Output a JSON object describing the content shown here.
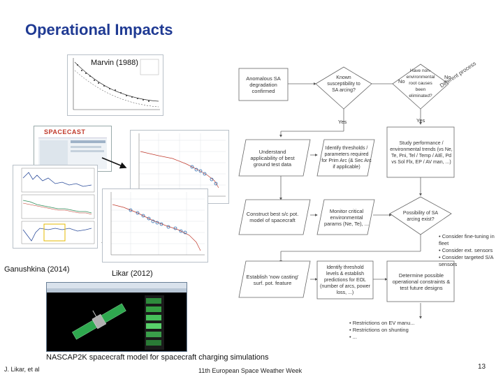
{
  "title": "Operational Impacts",
  "captions": {
    "marvin": "Marvin (1988)",
    "ganushkina": "Ganushkina (2014)",
    "likar": "Likar (2012)",
    "nascap": "NASCAP2K spacecraft model for spacecraft charging simulations"
  },
  "logo_text": "SPACECAST",
  "flowchart": {
    "anomalous": "Anomalous SA degradation confirmed",
    "known": "Known susceptibility to SA arcing?",
    "no_label": "No",
    "env_changes": "Have non-environmental root causes been eliminated?",
    "no_small": "No",
    "diff_process": "Different process",
    "yes_left": "Yes",
    "yes_right": "Yes",
    "understand": "Understand applicability of best ground test data",
    "identify": "Identify thresholds / parameters required for Prim Arc (& Sec Arc if applicable)",
    "study": "Study performance / environmental trends (vs Ne, Te, Pni, Tel / Temp / AIE, Pd vs Sol Flx, EP / AV man, ...)",
    "construct": "Construct best s/c pot. model of spacecraft",
    "monitor": "Monitor critical environmental params (Ne, Te), ...",
    "possibility": "Possibility of SA arcing exist?",
    "possibility_bullets": [
      "Consider fine-tuning in fleet",
      "Consider ext. sensors",
      "Consider targeted S/A sensors"
    ],
    "establish": "Establish 'now casting' surf. pot. feature",
    "identify_threshold": "Identify threshold levels & establish predictions for EOL (number of arcs, power loss, ...)",
    "determine": "Determine possible operational constraints & test future designs",
    "bottom_bullets": [
      "Restrictions on EV manu...",
      "Restrictions on shunting",
      "..."
    ]
  },
  "footer": {
    "author": "J. Likar, et al",
    "event": "11th European Space Weather Week",
    "page": "13"
  }
}
